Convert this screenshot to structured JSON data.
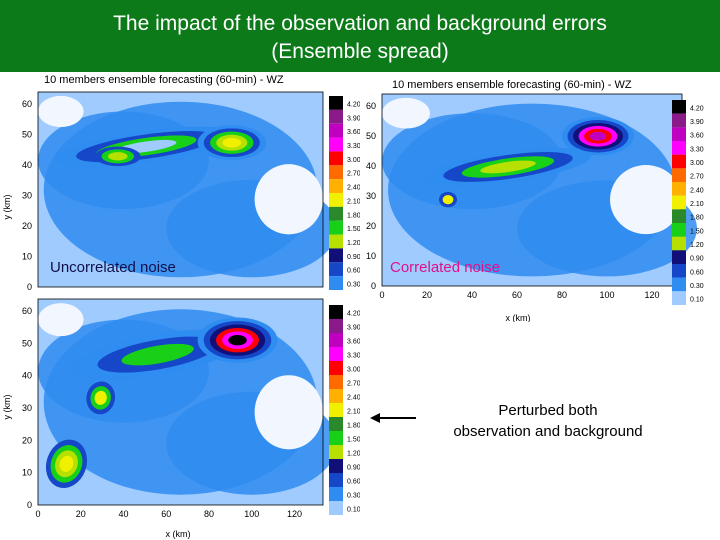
{
  "header": {
    "title": "The impact of the observation and background errors\n(Ensemble spread)"
  },
  "palette": [
    "#f2f6ff",
    "#d6e6ff",
    "#9fcbff",
    "#2f8cf0",
    "#1547c8",
    "#101078",
    "#000000",
    "#17d017",
    "#2a8a2a",
    "#b6e000",
    "#f0f000",
    "#ffb000",
    "#ff6a00",
    "#ff0000",
    "#ff00ff",
    "#c000c0",
    "#8a1a8a",
    "#e6e6e6"
  ],
  "chart_data": [
    {
      "type": "heatmap",
      "title": "10 members ensemble forecasting (60-min) - WZ",
      "panel_label": "Uncorrelated noise",
      "xlabel": "",
      "ylabel": "y (km)",
      "x_ticks": [],
      "y_ticks": [
        "60",
        "50",
        "40",
        "30",
        "20",
        "10",
        "0"
      ],
      "colorbar": [
        "4.20",
        "3.90",
        "3.60",
        "3.30",
        "3.00",
        "2.70",
        "2.40",
        "2.10",
        "1.80",
        "1.50",
        "1.20",
        "0.90",
        "0.60",
        "0.30"
      ]
    },
    {
      "type": "heatmap",
      "title": "10 members ensemble forecasting (60-min) - WZ",
      "panel_label": "Correlated noise",
      "xlabel": "x (km)",
      "ylabel": "",
      "x_ticks": [
        "0",
        "20",
        "40",
        "60",
        "80",
        "100",
        "120"
      ],
      "y_ticks": [
        "60",
        "50",
        "40",
        "30",
        "20",
        "10",
        "0"
      ],
      "colorbar": [
        "4.20",
        "3.90",
        "3.60",
        "3.30",
        "3.00",
        "2.70",
        "2.40",
        "2.10",
        "1.80",
        "1.50",
        "1.20",
        "0.90",
        "0.60",
        "0.30",
        "0.10"
      ]
    },
    {
      "type": "heatmap",
      "title": "",
      "panel_label": "",
      "xlabel": "x (km)",
      "ylabel": "y (km)",
      "x_ticks": [
        "0",
        "20",
        "40",
        "60",
        "80",
        "100",
        "120"
      ],
      "y_ticks": [
        "60",
        "50",
        "40",
        "30",
        "20",
        "10",
        "0"
      ],
      "colorbar": [
        "4.20",
        "3.90",
        "3.60",
        "3.30",
        "3.00",
        "2.70",
        "2.40",
        "2.10",
        "1.80",
        "1.50",
        "1.20",
        "0.90",
        "0.60",
        "0.30",
        "0.10"
      ]
    }
  ],
  "note": {
    "text": "Perturbed both\nobservation and background"
  }
}
